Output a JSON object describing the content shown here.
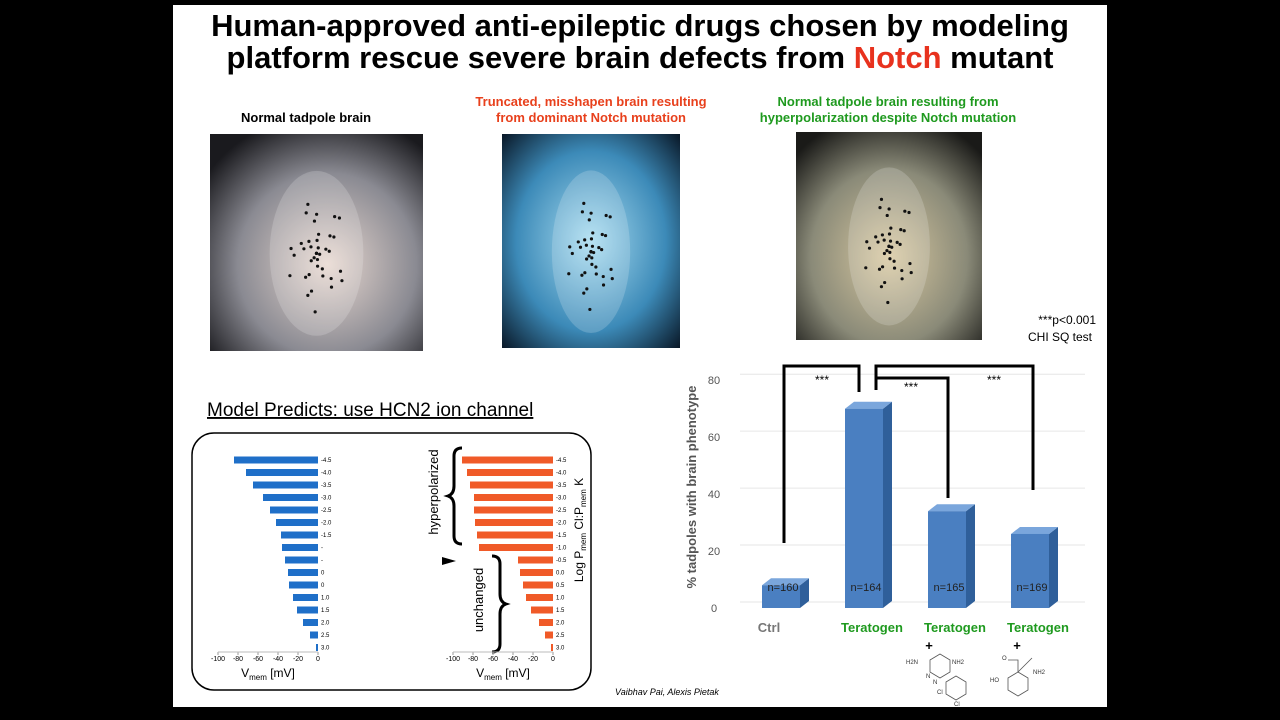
{
  "title": {
    "line1": "Human-approved anti-epileptic drugs chosen by modeling",
    "line2_before": "platform rescue severe brain defects from ",
    "highlight": "Notch",
    "line2_after": " mutant",
    "highlight_color": "#e8321e"
  },
  "images": [
    {
      "caption": [
        "Normal tadpole brain"
      ],
      "caption_color": "#000000"
    },
    {
      "caption": [
        "Truncated, misshapen brain resulting",
        "from dominant Notch mutation"
      ],
      "caption_color": "#e8401c"
    },
    {
      "caption": [
        "Normal tadpole brain resulting from",
        "hyperpolarization despite Notch mutation"
      ],
      "caption_color": "#1f9a1f"
    }
  ],
  "model_heading": "Model Predicts: use HCN2 ion channel",
  "model_annotations": [
    "hyperpolarized",
    "unchanged"
  ],
  "stats_note": [
    "***p<0.001",
    "CHI SQ test"
  ],
  "credit": "Vaibhav Pai, Alexis Pietak",
  "chem_labels": [
    [
      "H2N",
      "NH2",
      "N",
      "N",
      "Cl",
      "Cl"
    ],
    [
      "O",
      "HO",
      "NH2"
    ]
  ],
  "chart_data": [
    {
      "type": "hbar",
      "color": "#1f6fc8",
      "categories": [
        "-4.5",
        "-4.0",
        "-3.5",
        "-3.0",
        "-2.5",
        "-2.0",
        "-1.5",
        "-",
        "-",
        "0",
        "0",
        "1.0",
        "1.5",
        "2.0",
        "2.5",
        "3.0"
      ],
      "values": [
        -84,
        -72,
        -65,
        -55,
        -48,
        -42,
        -37,
        -36,
        -33,
        -30,
        -29,
        -25,
        -21,
        -15,
        -8,
        -2
      ],
      "xlim": [
        -100,
        0
      ],
      "xticks": [
        -100,
        -80,
        -60,
        -40,
        -20,
        0
      ],
      "x_label": {
        "main": "V",
        "sub": "mem",
        "unit": " [mV]"
      }
    },
    {
      "type": "hbar",
      "color": "#f05a28",
      "categories": [
        "-4.5",
        "-4.0",
        "-3.5",
        "-3.0",
        "-2.5",
        "-2.0",
        "-1.5",
        "-1.0",
        "-0.5",
        "0.0",
        "0.5",
        "1.0",
        "1.5",
        "2.0",
        "2.5",
        "3.0"
      ],
      "values": [
        -91,
        -86,
        -83,
        -79,
        -79,
        -78,
        -76,
        -74,
        -35,
        -33,
        -30,
        -27,
        -22,
        -14,
        -8,
        -2
      ],
      "xlim": [
        -100,
        0
      ],
      "xticks": [
        -100,
        -80,
        -60,
        -40,
        -20,
        0
      ],
      "x_label": {
        "main": "V",
        "sub": "mem",
        "unit": " [mV]"
      },
      "y_label": [
        "Log P",
        "mem",
        " Cl:P",
        "mem",
        " K"
      ]
    },
    {
      "type": "bar3d",
      "color": "#4a7fc1",
      "y_label": "% tadpoles with brain phenotype",
      "categories": [
        "Ctrl",
        "Teratogen",
        "Teratogen",
        "Teratogen"
      ],
      "category_colors": [
        "#777777",
        "#1f9a1f",
        "#1f9a1f",
        "#1f9a1f"
      ],
      "values": [
        8,
        70,
        34,
        26
      ],
      "n_labels": [
        "n=160",
        "n=164",
        "n=165",
        "n=169"
      ],
      "ylim": [
        0,
        85
      ],
      "yticks": [
        0,
        20,
        40,
        60,
        80
      ],
      "grid": true,
      "significance": [
        "***",
        "***",
        "***"
      ],
      "plus_markers": [
        "+",
        "+"
      ]
    }
  ]
}
